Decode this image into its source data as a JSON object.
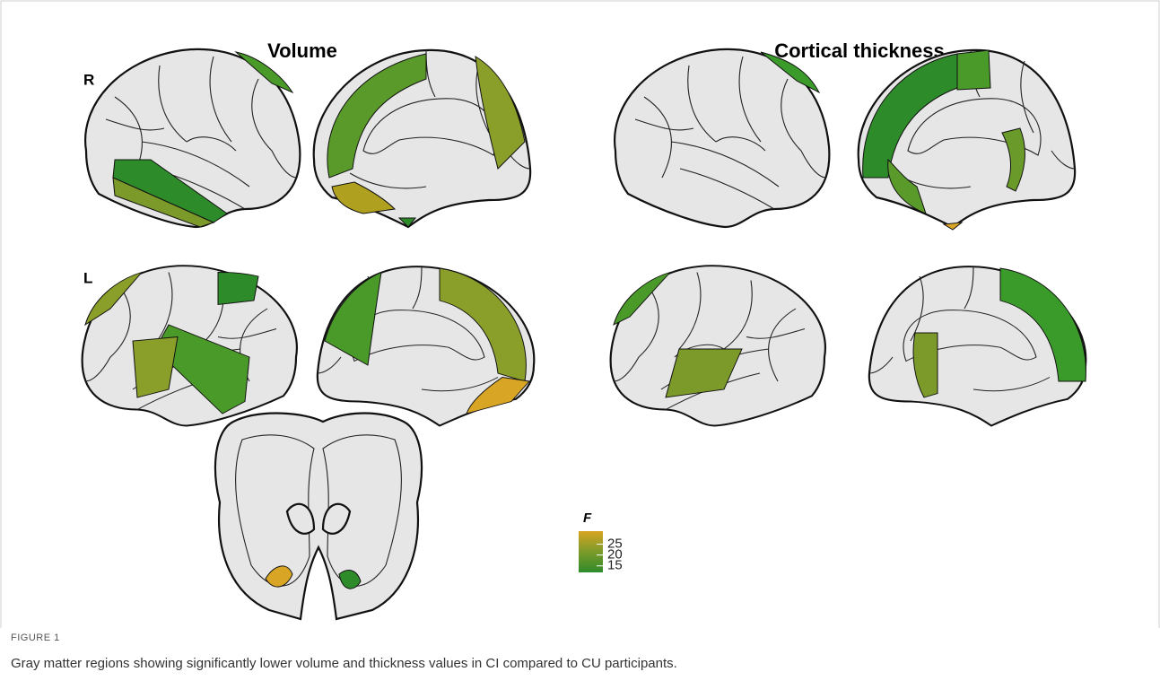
{
  "figure": {
    "panel_titles": [
      "Volume",
      "Cortical thickness"
    ],
    "row_labels": [
      "R",
      "L"
    ],
    "colorbar": {
      "label": "F",
      "range": [
        12,
        31
      ],
      "ticks": [
        25,
        20,
        15
      ]
    },
    "figure_label": "FIGURE 1",
    "caption": "Gray matter regions showing significantly lower volume and thickness values in CI compared to CU participants."
  }
}
